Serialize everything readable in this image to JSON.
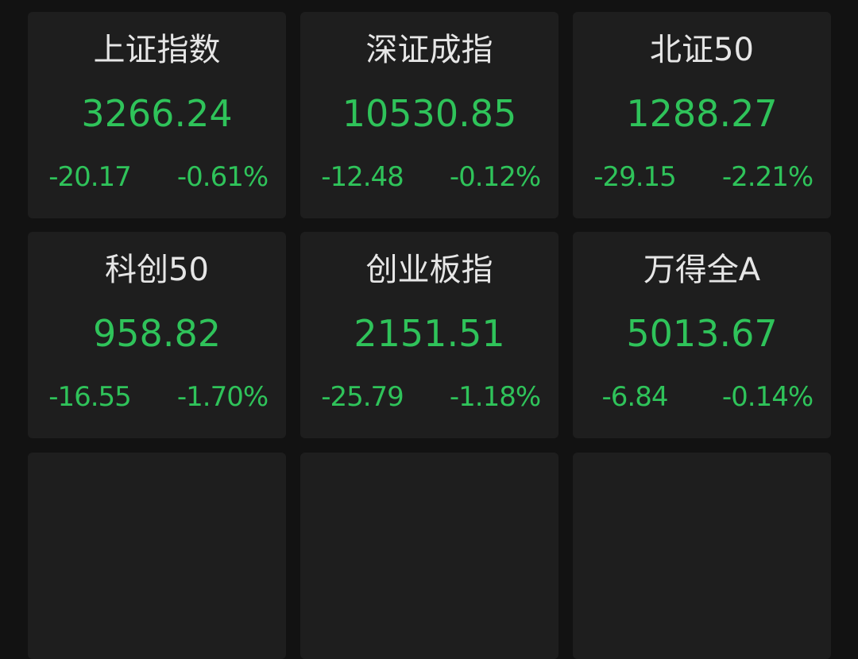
{
  "colors": {
    "background": "#121212",
    "card": "#1e1e1e",
    "title": "#e6e6e6",
    "down": "#2fc35a"
  },
  "indices": [
    {
      "name": "上证指数",
      "value": "3266.24",
      "change": "-20.17",
      "pct": "-0.61%"
    },
    {
      "name": "深证成指",
      "value": "10530.85",
      "change": "-12.48",
      "pct": "-0.12%"
    },
    {
      "name": "北证50",
      "value": "1288.27",
      "change": "-29.15",
      "pct": "-2.21%"
    },
    {
      "name": "科创50",
      "value": "958.82",
      "change": "-16.55",
      "pct": "-1.70%"
    },
    {
      "name": "创业板指",
      "value": "2151.51",
      "change": "-25.79",
      "pct": "-1.18%"
    },
    {
      "name": "万得全A",
      "value": "5013.67",
      "change": "-6.84",
      "pct": "-0.14%"
    }
  ]
}
